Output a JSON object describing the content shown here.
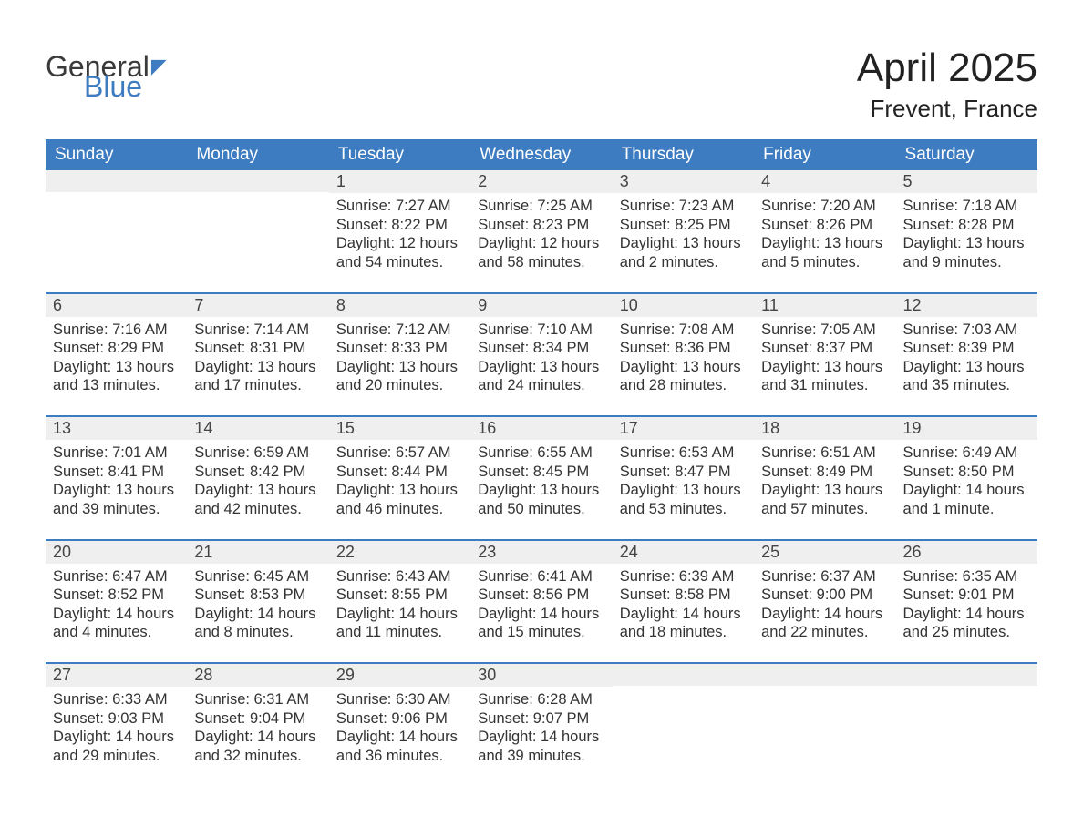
{
  "logo": {
    "line1": "General",
    "line2": "Blue"
  },
  "title": "April 2025",
  "location": "Frevent, France",
  "colors": {
    "header_bg": "#3d7cc0",
    "header_fg": "#ffffff",
    "daynum_bg": "#efefef",
    "row_divider": "#3d7cc0",
    "text": "#333333",
    "page_bg": "#ffffff"
  },
  "weekdays": [
    "Sunday",
    "Monday",
    "Tuesday",
    "Wednesday",
    "Thursday",
    "Friday",
    "Saturday"
  ],
  "weeks": [
    [
      {
        "n": "",
        "sr": "",
        "ss": "",
        "dl": ""
      },
      {
        "n": "",
        "sr": "",
        "ss": "",
        "dl": ""
      },
      {
        "n": "1",
        "sr": "Sunrise: 7:27 AM",
        "ss": "Sunset: 8:22 PM",
        "dl": "Daylight: 12 hours and 54 minutes."
      },
      {
        "n": "2",
        "sr": "Sunrise: 7:25 AM",
        "ss": "Sunset: 8:23 PM",
        "dl": "Daylight: 12 hours and 58 minutes."
      },
      {
        "n": "3",
        "sr": "Sunrise: 7:23 AM",
        "ss": "Sunset: 8:25 PM",
        "dl": "Daylight: 13 hours and 2 minutes."
      },
      {
        "n": "4",
        "sr": "Sunrise: 7:20 AM",
        "ss": "Sunset: 8:26 PM",
        "dl": "Daylight: 13 hours and 5 minutes."
      },
      {
        "n": "5",
        "sr": "Sunrise: 7:18 AM",
        "ss": "Sunset: 8:28 PM",
        "dl": "Daylight: 13 hours and 9 minutes."
      }
    ],
    [
      {
        "n": "6",
        "sr": "Sunrise: 7:16 AM",
        "ss": "Sunset: 8:29 PM",
        "dl": "Daylight: 13 hours and 13 minutes."
      },
      {
        "n": "7",
        "sr": "Sunrise: 7:14 AM",
        "ss": "Sunset: 8:31 PM",
        "dl": "Daylight: 13 hours and 17 minutes."
      },
      {
        "n": "8",
        "sr": "Sunrise: 7:12 AM",
        "ss": "Sunset: 8:33 PM",
        "dl": "Daylight: 13 hours and 20 minutes."
      },
      {
        "n": "9",
        "sr": "Sunrise: 7:10 AM",
        "ss": "Sunset: 8:34 PM",
        "dl": "Daylight: 13 hours and 24 minutes."
      },
      {
        "n": "10",
        "sr": "Sunrise: 7:08 AM",
        "ss": "Sunset: 8:36 PM",
        "dl": "Daylight: 13 hours and 28 minutes."
      },
      {
        "n": "11",
        "sr": "Sunrise: 7:05 AM",
        "ss": "Sunset: 8:37 PM",
        "dl": "Daylight: 13 hours and 31 minutes."
      },
      {
        "n": "12",
        "sr": "Sunrise: 7:03 AM",
        "ss": "Sunset: 8:39 PM",
        "dl": "Daylight: 13 hours and 35 minutes."
      }
    ],
    [
      {
        "n": "13",
        "sr": "Sunrise: 7:01 AM",
        "ss": "Sunset: 8:41 PM",
        "dl": "Daylight: 13 hours and 39 minutes."
      },
      {
        "n": "14",
        "sr": "Sunrise: 6:59 AM",
        "ss": "Sunset: 8:42 PM",
        "dl": "Daylight: 13 hours and 42 minutes."
      },
      {
        "n": "15",
        "sr": "Sunrise: 6:57 AM",
        "ss": "Sunset: 8:44 PM",
        "dl": "Daylight: 13 hours and 46 minutes."
      },
      {
        "n": "16",
        "sr": "Sunrise: 6:55 AM",
        "ss": "Sunset: 8:45 PM",
        "dl": "Daylight: 13 hours and 50 minutes."
      },
      {
        "n": "17",
        "sr": "Sunrise: 6:53 AM",
        "ss": "Sunset: 8:47 PM",
        "dl": "Daylight: 13 hours and 53 minutes."
      },
      {
        "n": "18",
        "sr": "Sunrise: 6:51 AM",
        "ss": "Sunset: 8:49 PM",
        "dl": "Daylight: 13 hours and 57 minutes."
      },
      {
        "n": "19",
        "sr": "Sunrise: 6:49 AM",
        "ss": "Sunset: 8:50 PM",
        "dl": "Daylight: 14 hours and 1 minute."
      }
    ],
    [
      {
        "n": "20",
        "sr": "Sunrise: 6:47 AM",
        "ss": "Sunset: 8:52 PM",
        "dl": "Daylight: 14 hours and 4 minutes."
      },
      {
        "n": "21",
        "sr": "Sunrise: 6:45 AM",
        "ss": "Sunset: 8:53 PM",
        "dl": "Daylight: 14 hours and 8 minutes."
      },
      {
        "n": "22",
        "sr": "Sunrise: 6:43 AM",
        "ss": "Sunset: 8:55 PM",
        "dl": "Daylight: 14 hours and 11 minutes."
      },
      {
        "n": "23",
        "sr": "Sunrise: 6:41 AM",
        "ss": "Sunset: 8:56 PM",
        "dl": "Daylight: 14 hours and 15 minutes."
      },
      {
        "n": "24",
        "sr": "Sunrise: 6:39 AM",
        "ss": "Sunset: 8:58 PM",
        "dl": "Daylight: 14 hours and 18 minutes."
      },
      {
        "n": "25",
        "sr": "Sunrise: 6:37 AM",
        "ss": "Sunset: 9:00 PM",
        "dl": "Daylight: 14 hours and 22 minutes."
      },
      {
        "n": "26",
        "sr": "Sunrise: 6:35 AM",
        "ss": "Sunset: 9:01 PM",
        "dl": "Daylight: 14 hours and 25 minutes."
      }
    ],
    [
      {
        "n": "27",
        "sr": "Sunrise: 6:33 AM",
        "ss": "Sunset: 9:03 PM",
        "dl": "Daylight: 14 hours and 29 minutes."
      },
      {
        "n": "28",
        "sr": "Sunrise: 6:31 AM",
        "ss": "Sunset: 9:04 PM",
        "dl": "Daylight: 14 hours and 32 minutes."
      },
      {
        "n": "29",
        "sr": "Sunrise: 6:30 AM",
        "ss": "Sunset: 9:06 PM",
        "dl": "Daylight: 14 hours and 36 minutes."
      },
      {
        "n": "30",
        "sr": "Sunrise: 6:28 AM",
        "ss": "Sunset: 9:07 PM",
        "dl": "Daylight: 14 hours and 39 minutes."
      },
      {
        "n": "",
        "sr": "",
        "ss": "",
        "dl": ""
      },
      {
        "n": "",
        "sr": "",
        "ss": "",
        "dl": ""
      },
      {
        "n": "",
        "sr": "",
        "ss": "",
        "dl": ""
      }
    ]
  ]
}
